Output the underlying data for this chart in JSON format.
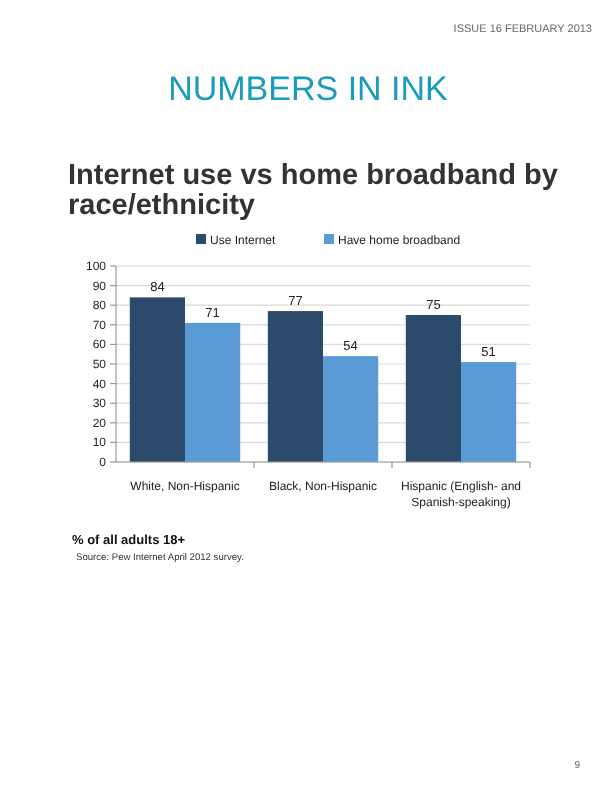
{
  "chart_data": {
    "type": "bar",
    "title": "Internet use vs home broadband by race/ethnicity",
    "categories": [
      "White, Non-Hispanic",
      "Black, Non-Hispanic",
      "Hispanic (English- and Spanish-speaking)"
    ],
    "series": [
      {
        "name": "Use Internet",
        "color": "#2c4a6b",
        "values": [
          84,
          77,
          75
        ]
      },
      {
        "name": "Have home broadband",
        "color": "#5b9bd5",
        "values": [
          71,
          54,
          51
        ]
      }
    ],
    "ylim": [
      0,
      100
    ],
    "yticks": [
      0,
      10,
      20,
      30,
      40,
      50,
      60,
      70,
      80,
      90,
      100
    ],
    "grid": "y",
    "legend": "top",
    "data_labels": true,
    "annotations": [
      "ISSUE 16 FEBRUARY 2013",
      "NUMBERS IN INK",
      "% of all adults 18+",
      "Source:  Pew Internet April 2012 survey.",
      "9"
    ]
  }
}
